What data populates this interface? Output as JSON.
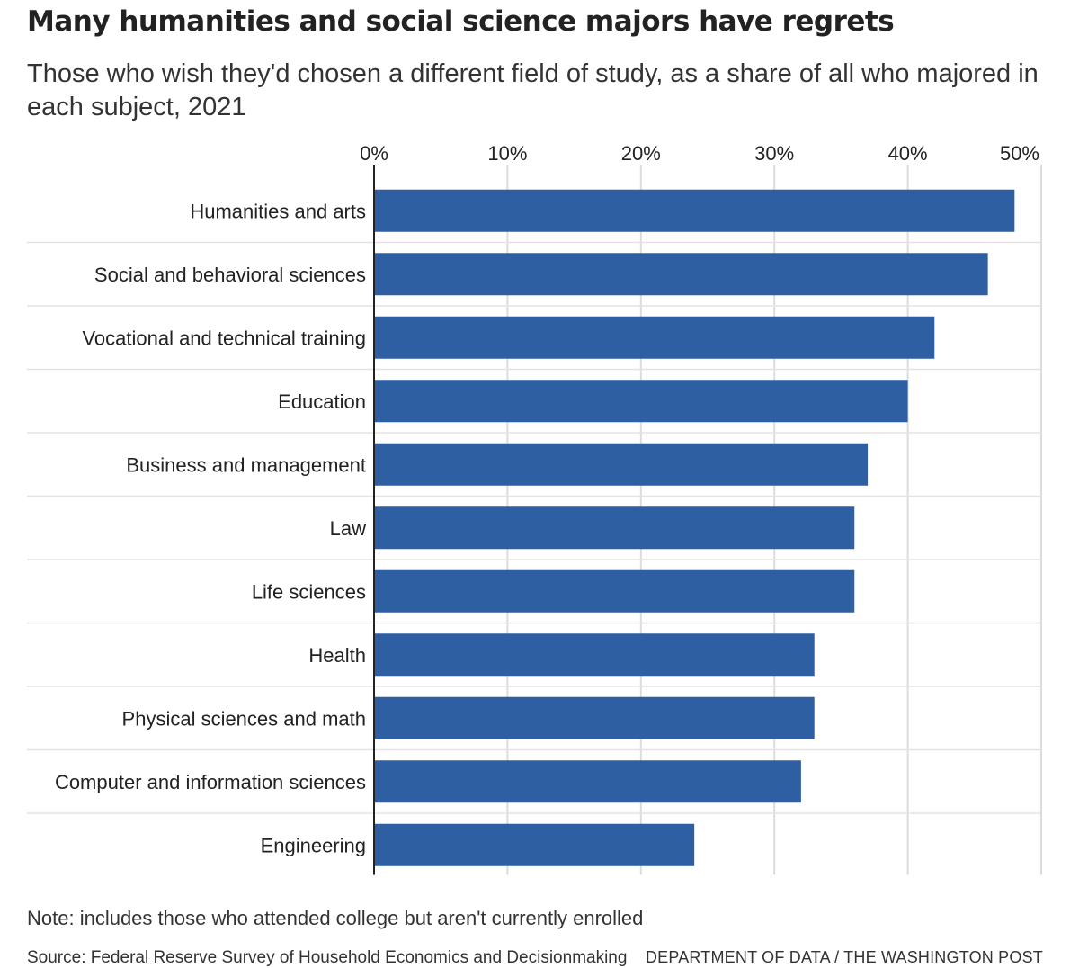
{
  "chart_data": {
    "type": "bar",
    "orientation": "horizontal",
    "title": "Many humanities and social science majors have regrets",
    "subtitle": "Those who wish they'd chosen a different field of study, as a share of all who majored in each subject, 2021",
    "categories": [
      "Humanities and arts",
      "Social and behavioral sciences",
      "Vocational and technical training",
      "Education",
      "Business and management",
      "Law",
      "Life sciences",
      "Health",
      "Physical sciences and math",
      "Computer and information sciences",
      "Engineering"
    ],
    "values": [
      48,
      46,
      42,
      40,
      37,
      36,
      36,
      33,
      33,
      32,
      24
    ],
    "value_unit": "%",
    "xlim": [
      0,
      50
    ],
    "ticks": [
      0,
      10,
      20,
      30,
      40,
      50
    ],
    "tick_labels": [
      "0%",
      "10%",
      "20%",
      "30%",
      "40%",
      "50%"
    ],
    "xlabel": "",
    "ylabel": "",
    "grid": true,
    "axis_position": "top",
    "bar_color": "#2e5fa3",
    "note": "Note: includes those who attended college but aren't currently enrolled",
    "source": "Source: Federal Reserve Survey of Household Economics and Decisionmaking",
    "credit": "DEPARTMENT OF DATA / THE WASHINGTON POST"
  }
}
